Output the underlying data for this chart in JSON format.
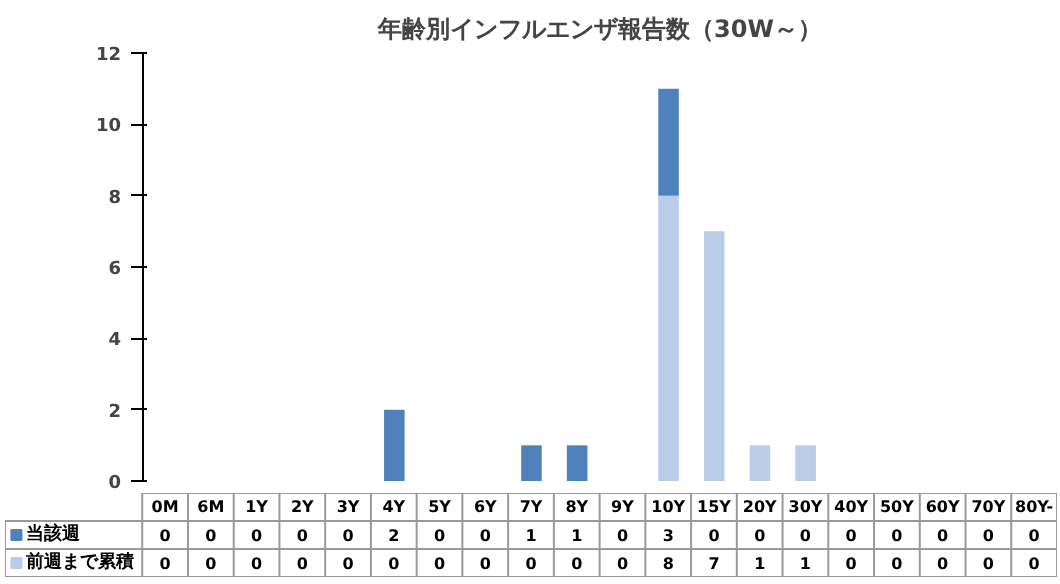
{
  "chart_data": {
    "type": "bar",
    "title": "年齢別インフルエンザ報告数（30W～）",
    "stacked": true,
    "categories": [
      "0M",
      "6M",
      "1Y",
      "2Y",
      "3Y",
      "4Y",
      "5Y",
      "6Y",
      "7Y",
      "8Y",
      "9Y",
      "10Y",
      "15Y",
      "20Y",
      "30Y",
      "40Y",
      "50Y",
      "60Y",
      "70Y",
      "80Y-"
    ],
    "series": [
      {
        "name": "前週まで累積",
        "color": "#b9cde8",
        "values": [
          0,
          0,
          0,
          0,
          0,
          0,
          0,
          0,
          0,
          0,
          0,
          8,
          7,
          1,
          1,
          0,
          0,
          0,
          0,
          0
        ]
      },
      {
        "name": "当該週",
        "color": "#4f81bd",
        "values": [
          0,
          0,
          0,
          0,
          0,
          2,
          0,
          0,
          1,
          1,
          0,
          3,
          0,
          0,
          0,
          0,
          0,
          0,
          0,
          0
        ]
      }
    ],
    "ylim": [
      0,
      12
    ],
    "yticks": [
      0,
      2,
      4,
      6,
      8,
      10,
      12
    ],
    "grid": false,
    "legend": "bottom",
    "data_labels": true
  }
}
